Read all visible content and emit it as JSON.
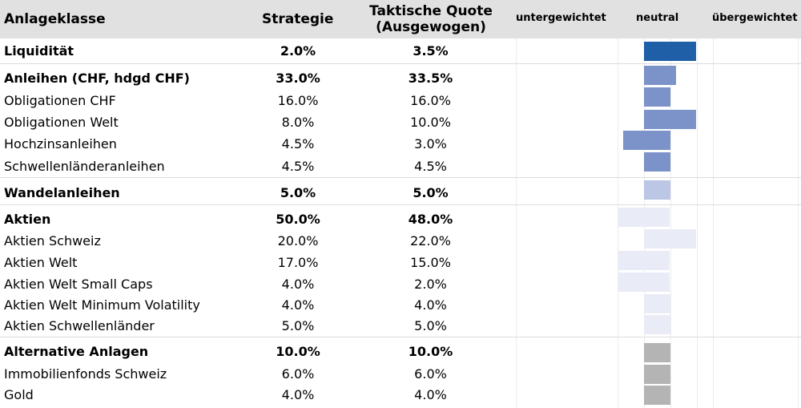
{
  "header": {
    "asset_class": "Anlageklasse",
    "strategy": "Strategie",
    "tactical_line1": "Taktische Quote",
    "tactical_line2": "(Ausgewogen)",
    "underweight": "untergewichtet",
    "neutral": "neutral",
    "overweight": "übergewichtet"
  },
  "chart_data": {
    "type": "bar",
    "orientation": "horizontal-diverging",
    "unit": "%",
    "rows": [
      {
        "label": "Liquidität",
        "strategy": "2.0%",
        "tactical": "3.5%",
        "strategy_value": 2.0,
        "tactical_value": 3.5,
        "level": "group",
        "tilt": 2,
        "color": "#1f5fa8"
      },
      {
        "label": "Anleihen (CHF, hdgd CHF)",
        "strategy": "33.0%",
        "tactical": "33.5%",
        "strategy_value": 33.0,
        "tactical_value": 33.5,
        "level": "group",
        "tilt": 1,
        "color": "#7b93c9"
      },
      {
        "label": "Obligationen CHF",
        "strategy": "16.0%",
        "tactical": "16.0%",
        "strategy_value": 16.0,
        "tactical_value": 16.0,
        "level": "item",
        "tilt": 0,
        "color": "#7b93c9"
      },
      {
        "label": "Obligationen Welt",
        "strategy": "8.0%",
        "tactical": "10.0%",
        "strategy_value": 8.0,
        "tactical_value": 10.0,
        "level": "item",
        "tilt": 2,
        "color": "#7b93c9"
      },
      {
        "label": "Hochzinsanleihen",
        "strategy": "4.5%",
        "tactical": "3.0%",
        "strategy_value": 4.5,
        "tactical_value": 3.0,
        "level": "item",
        "tilt": -1,
        "color": "#7b93c9"
      },
      {
        "label": "Schwellenländeranleihen",
        "strategy": "4.5%",
        "tactical": "4.5%",
        "strategy_value": 4.5,
        "tactical_value": 4.5,
        "level": "item",
        "tilt": 0,
        "color": "#7b93c9"
      },
      {
        "label": "Wandelanleihen",
        "strategy": "5.0%",
        "tactical": "5.0%",
        "strategy_value": 5.0,
        "tactical_value": 5.0,
        "level": "group",
        "tilt": 0,
        "color": "#bcc6e5"
      },
      {
        "label": "Aktien",
        "strategy": "50.0%",
        "tactical": "48.0%",
        "strategy_value": 50.0,
        "tactical_value": 48.0,
        "level": "group",
        "tilt": -2,
        "color": "#e9ebf6"
      },
      {
        "label": "Aktien Schweiz",
        "strategy": "20.0%",
        "tactical": "22.0%",
        "strategy_value": 20.0,
        "tactical_value": 22.0,
        "level": "item",
        "tilt": 2,
        "color": "#e9ebf6"
      },
      {
        "label": "Aktien Welt",
        "strategy": "17.0%",
        "tactical": "15.0%",
        "strategy_value": 17.0,
        "tactical_value": 15.0,
        "level": "item",
        "tilt": -2,
        "color": "#e9ebf6"
      },
      {
        "label": "Aktien Welt Small Caps",
        "strategy": "4.0%",
        "tactical": "2.0%",
        "strategy_value": 4.0,
        "tactical_value": 2.0,
        "level": "item",
        "tilt": -2,
        "color": "#e9ebf6"
      },
      {
        "label": "Aktien Welt Minimum Volatility",
        "strategy": "4.0%",
        "tactical": "4.0%",
        "strategy_value": 4.0,
        "tactical_value": 4.0,
        "level": "item",
        "tilt": 0,
        "color": "#e9ebf6"
      },
      {
        "label": "Aktien Schwellenländer",
        "strategy": "5.0%",
        "tactical": "5.0%",
        "strategy_value": 5.0,
        "tactical_value": 5.0,
        "level": "item",
        "tilt": 0,
        "color": "#e9ebf6"
      },
      {
        "label": "Alternative Anlagen",
        "strategy": "10.0%",
        "tactical": "10.0%",
        "strategy_value": 10.0,
        "tactical_value": 10.0,
        "level": "group",
        "tilt": 0,
        "color": "#b4b4b4"
      },
      {
        "label": "Immobilienfonds Schweiz",
        "strategy": "6.0%",
        "tactical": "6.0%",
        "strategy_value": 6.0,
        "tactical_value": 6.0,
        "level": "item",
        "tilt": 0,
        "color": "#b4b4b4"
      },
      {
        "label": "Gold",
        "strategy": "4.0%",
        "tactical": "4.0%",
        "strategy_value": 4.0,
        "tactical_value": 4.0,
        "level": "item",
        "tilt": 0,
        "color": "#b4b4b4"
      }
    ]
  }
}
